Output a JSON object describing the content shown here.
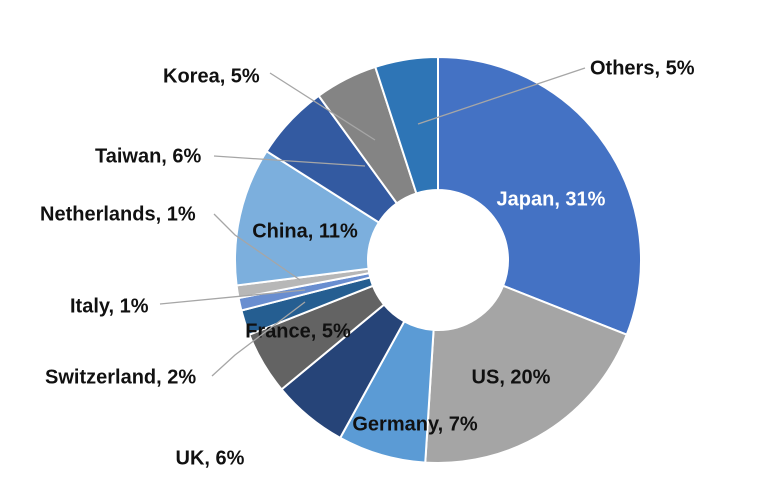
{
  "chart_data": {
    "type": "donut",
    "categories": [
      "Japan",
      "US",
      "Germany",
      "UK",
      "France",
      "Switzerland",
      "Italy",
      "Netherlands",
      "China",
      "Taiwan",
      "Korea",
      "Others"
    ],
    "values": [
      31,
      20,
      7,
      6,
      5,
      2,
      1,
      1,
      11,
      6,
      5,
      5
    ],
    "value_labels": [
      "Japan, 31%",
      "US, 20%",
      "Germany, 7%",
      "UK, 6%",
      "France, 5%",
      "Switzerland, 2%",
      "Italy, 1%",
      "Netherlands, 1%",
      "China, 11%",
      "Taiwan, 6%",
      "Korea, 5%",
      "Others, 5%"
    ],
    "colors": [
      "#4472c4",
      "#a5a5a5",
      "#5b9bd5",
      "#264478",
      "#636363",
      "#255e91",
      "#698ed0",
      "#b7b7b7",
      "#7cafdd",
      "#335aa1",
      "#848484",
      "#2e75b6"
    ]
  }
}
